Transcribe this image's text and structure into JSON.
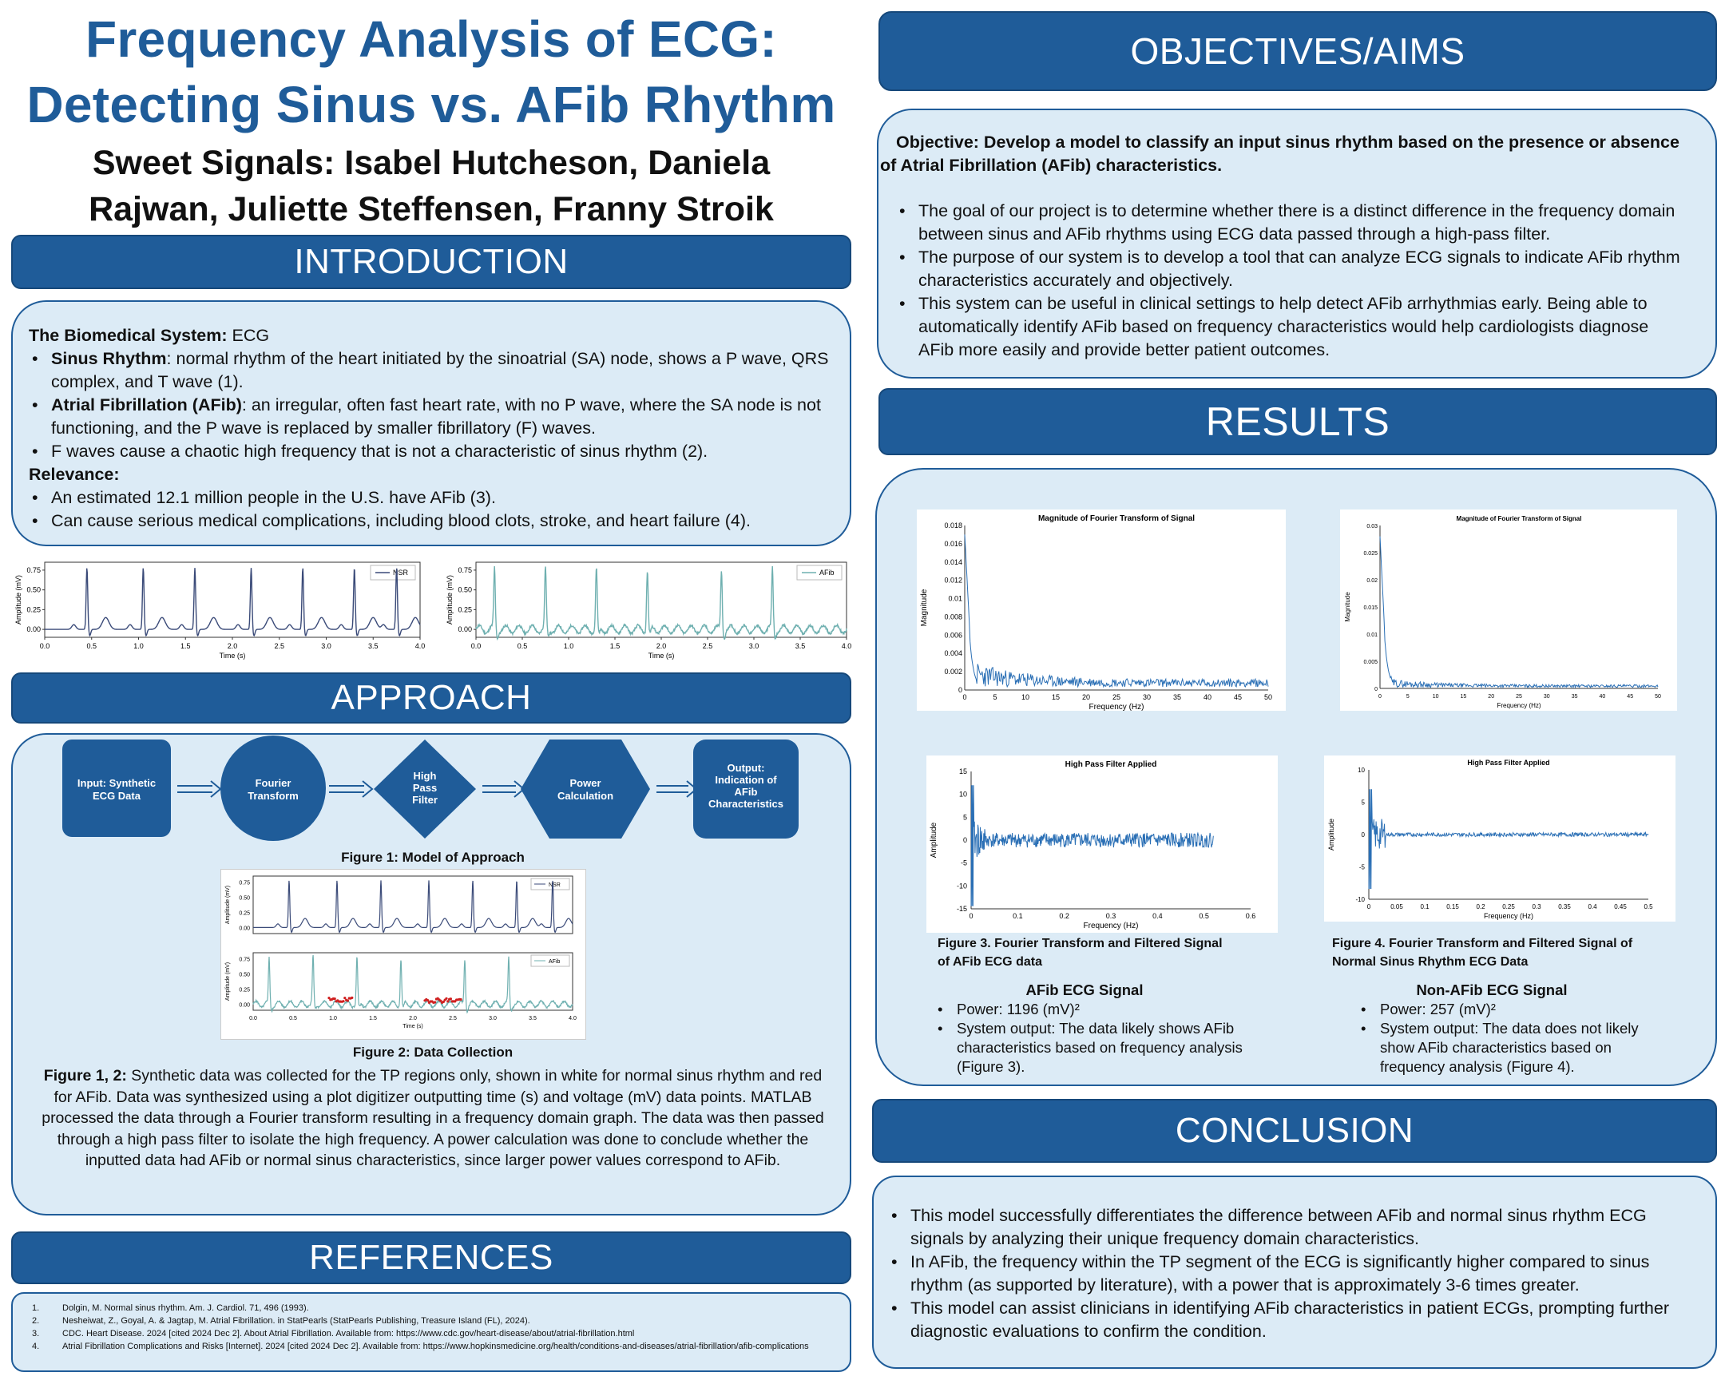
{
  "poster": {
    "title_line1": "Frequency Analysis of ECG:",
    "title_line2": "Detecting Sinus vs. AFib Rhythm",
    "authors_line1": "Sweet Signals: Isabel Hutcheson, Daniela",
    "authors_line2": "Rajwan,  Juliette Steffensen, Franny Stroik"
  },
  "introduction": {
    "heading": "INTRODUCTION",
    "system_label": "The Biomedical System:",
    "system_value": " ECG",
    "bullets": [
      {
        "bold": "Sinus Rhythm",
        "text": ": normal rhythm of the heart initiated by the sinoatrial (SA) node, shows a P wave, QRS complex, and T wave (1)."
      },
      {
        "bold": "Atrial Fibrillation (AFib)",
        "text": ":  an irregular, often fast heart rate, with no P wave, where the SA node is not functioning, and the P wave is replaced by smaller fibrillatory (F) waves."
      },
      {
        "bold": "",
        "text": "F waves cause a chaotic high frequency that is not a characteristic of sinus rhythm (2)."
      }
    ],
    "relevance_label": "Relevance:",
    "relevance_bullets": [
      "An estimated 12.1 million people in the U.S. have AFib (3).",
      "Can cause serious medical complications, including blood clots, stroke, and heart failure (4)."
    ]
  },
  "ecg_plots": {
    "ylabel": "Amplitude (mV)",
    "xlabel": "Time (s)",
    "yticks": [
      "0.75",
      "0.50",
      "0.25",
      "0.00"
    ],
    "xticks": [
      "0.0",
      "0.5",
      "1.0",
      "1.5",
      "2.0",
      "2.5",
      "3.0",
      "3.5",
      "4.0"
    ],
    "nsr_legend": "NSR",
    "afib_legend": "AFib"
  },
  "approach": {
    "heading": "APPROACH",
    "flow": {
      "input": [
        "Input: Synthetic",
        "ECG Data"
      ],
      "fourier": [
        "Fourier",
        "Transform"
      ],
      "filter": [
        "High",
        "Pass",
        "Filter"
      ],
      "power": [
        "Power",
        "Calculation"
      ],
      "output": [
        "Output:",
        "Indication of",
        "AFib",
        "Characteristics"
      ]
    },
    "fig1_caption": "Figure 1: Model of Approach",
    "fig2_caption": "Figure 2: Data Collection",
    "fig_desc_label": "Figure 1, 2:",
    "fig_desc": " Synthetic data was collected for the TP regions only, shown in white for normal sinus rhythm and red for AFib. Data was synthesized using a plot digitizer outputting time (s) and voltage (mV) data points. MATLAB processed the data through a Fourier transform resulting in a frequency domain graph. The data was then passed through a high pass filter to isolate the high frequency. A power calculation was done to conclude whether the inputted data had AFib or normal sinus characteristics, since larger power values correspond to AFib."
  },
  "references": {
    "heading": "REFERENCES",
    "items": [
      {
        "n": "1.",
        "text": "Dolgin, M. Normal sinus rhythm. Am. J. Cardiol. 71, 496 (1993)."
      },
      {
        "n": "2.",
        "text": "Nesheiwat, Z., Goyal, A. & Jagtap, M. Atrial Fibrillation. in StatPearls (StatPearls Publishing, Treasure Island (FL), 2024)."
      },
      {
        "n": "3.",
        "text": "CDC. Heart Disease. 2024 [cited 2024 Dec 2]. About Atrial Fibrillation. Available from: https://www.cdc.gov/heart-disease/about/atrial-fibrillation.html"
      },
      {
        "n": "4.",
        "text": "Atrial Fibrillation Complications and Risks [Internet]. 2024 [cited 2024 Dec 2]. Available from: https://www.hopkinsmedicine.org/health/conditions-and-diseases/atrial-fibrillation/afib-complications"
      }
    ]
  },
  "objectives": {
    "heading": "OBJECTIVES/AIMS",
    "objective": "Objective: Develop a model to classify an input sinus rhythm based on the presence or absence of  Atrial Fibrillation  (AFib) characteristics.",
    "bullets": [
      "The goal of our project is to determine whether there is a distinct difference in the frequency domain between sinus and AFib rhythms using ECG data passed through a high-pass filter.",
      " The purpose of our system is to develop a tool that can analyze ECG signals to indicate AFib rhythm characteristics accurately and objectively.",
      "This system can be useful in clinical settings to help detect AFib arrhythmias early. Being able to automatically identify AFib based on frequency characteristics would help cardiologists diagnose AFib more easily and provide better patient outcomes."
    ]
  },
  "results": {
    "heading": "RESULTS",
    "fft_title": "Magnitude of Fourier Transform of Signal",
    "fft_ylabel": "Magnitude",
    "fft_xlabel": "Frequency (Hz)",
    "hpf_title": "High Pass Filter Applied",
    "hpf_ylabel": "Amplitude",
    "hpf_xlabel": "Frequency (Hz)",
    "fig3_caption": "Figure 3. Fourier Transform and Filtered Signal of AFib ECG  data",
    "fig4_caption": "Figure 4. Fourier Transform and Filtered Signal of Normal Sinus Rhythm ECG Data",
    "afib_heading": "AFib ECG Signal",
    "afib_bullets": [
      "Power:  1196 (mV)²",
      "System output: The data likely shows AFib characteristics based on frequency analysis (Figure 3)."
    ],
    "nonafib_heading": "Non-AFib ECG Signal",
    "nonafib_bullets": [
      "Power: 257 (mV)²",
      "System output: The data does not likely show AFib characteristics based on frequency analysis (Figure 4)."
    ]
  },
  "conclusion": {
    "heading": "CONCLUSION",
    "bullets": [
      "This model successfully differentiates the difference between AFib and normal sinus rhythm ECG signals by analyzing their unique frequency domain characteristics.",
      "In AFib, the frequency within the TP segment of the ECG is significantly higher compared to sinus rhythm (as supported by literature), with a power that is approximately 3-6 times greater.",
      "This model can assist clinicians in identifying AFib characteristics in patient ECGs, prompting further diagnostic evaluations to confirm the condition."
    ]
  },
  "colors": {
    "accent": "#1f5c99",
    "panel": "#dcebf6",
    "nsr_line": "#3a4a78",
    "afib_line": "#6fb0b0",
    "fft_line": "#2a6fb5",
    "afib_marker": "#d02020"
  },
  "chart_data": [
    {
      "type": "line",
      "id": "nsr-ecg",
      "legend": "NSR",
      "xlabel": "Time (s)",
      "ylabel": "Amplitude (mV)",
      "xlim": [
        0,
        4
      ],
      "ylim": [
        -0.1,
        0.85
      ],
      "r_peaks_s": [
        0.45,
        1.05,
        1.6,
        2.2,
        2.75,
        3.3,
        3.75
      ],
      "r_amplitude": 0.78,
      "t_amplitude": 0.15
    },
    {
      "type": "line",
      "id": "afib-ecg",
      "legend": "AFib",
      "xlabel": "Time (s)",
      "ylabel": "Amplitude (mV)",
      "xlim": [
        0,
        4
      ],
      "ylim": [
        -0.1,
        0.85
      ],
      "r_peaks_s": [
        0.2,
        0.75,
        1.3,
        1.85,
        2.65,
        3.2
      ],
      "r_amplitude": 0.76,
      "f_wave_amplitude": 0.05
    },
    {
      "type": "line",
      "id": "afib-fft",
      "title": "Magnitude of Fourier Transform of Signal",
      "xlabel": "Frequency (Hz)",
      "ylabel": "Magnitude",
      "xlim": [
        0,
        50
      ],
      "ylim": [
        0,
        0.018
      ],
      "xticks": [
        0,
        5,
        10,
        15,
        20,
        25,
        30,
        35,
        40,
        45,
        50
      ],
      "yticks": [
        0,
        0.002,
        0.004,
        0.006,
        0.008,
        0.01,
        0.012,
        0.014,
        0.016,
        0.018
      ],
      "peak": 0.017
    },
    {
      "type": "line",
      "id": "nsr-fft",
      "title": "Magnitude of Fourier Transform of Signal",
      "xlabel": "Frequency (Hz)",
      "ylabel": "Magnitude",
      "xlim": [
        0,
        50
      ],
      "ylim": [
        0,
        0.03
      ],
      "xticks": [
        0,
        5,
        10,
        15,
        20,
        25,
        30,
        35,
        40,
        45,
        50
      ],
      "yticks": [
        0,
        0.005,
        0.01,
        0.015,
        0.02,
        0.025,
        0.03
      ],
      "peak": 0.028
    },
    {
      "type": "line",
      "id": "afib-hpf",
      "title": "High Pass Filter Applied",
      "xlabel": "Frequency (Hz)",
      "ylabel": "Amplitude",
      "xlim": [
        0,
        0.6
      ],
      "ylim": [
        -15,
        15
      ],
      "xticks": [
        0,
        0.1,
        0.2,
        0.3,
        0.4,
        0.5,
        0.6
      ],
      "yticks": [
        15,
        10,
        5,
        0,
        -5,
        -10,
        -15
      ],
      "spike": 12
    },
    {
      "type": "line",
      "id": "nsr-hpf",
      "title": "High Pass Filter Applied",
      "xlabel": "Frequency (Hz)",
      "ylabel": "Amplitude",
      "xlim": [
        0,
        0.5
      ],
      "ylim": [
        -10,
        10
      ],
      "xticks": [
        0,
        0.05,
        0.1,
        0.15,
        0.2,
        0.25,
        0.3,
        0.35,
        0.4,
        0.45,
        0.5
      ],
      "yticks": [
        10,
        5,
        0,
        -5,
        -10
      ],
      "spike": 7
    }
  ]
}
